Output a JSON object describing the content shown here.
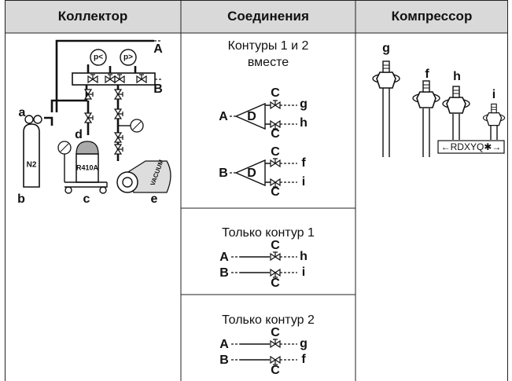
{
  "header": [
    "Коллектор",
    "Соединения",
    "Компрессор"
  ],
  "manifold": {
    "gauge_low": "p<",
    "gauge_high": "p>",
    "port_a": "A",
    "port_b": "B",
    "hose": "a",
    "nitrogen": "b",
    "cylinder": "N2",
    "cart": "c",
    "bottle": "d",
    "refrigerant": "R410A",
    "pump": "e",
    "pump_text": "VACUUM"
  },
  "connections": [
    {
      "title": "Контуры 1 и 2 вместе",
      "groups": [
        {
          "from": "A",
          "divider": "D",
          "valve_top": "C",
          "to_top": "g",
          "to_bottom": "h",
          "valve_bottom": "C"
        },
        {
          "from": "B",
          "divider": "D",
          "valve_top": "C",
          "to_top": "f",
          "to_bottom": "i",
          "valve_bottom": "C"
        }
      ]
    },
    {
      "title": "Только контур 1",
      "lines": [
        {
          "from": "A",
          "valve": "C",
          "to": "h"
        },
        {
          "from": "B",
          "valve": "C",
          "to": "i"
        }
      ]
    },
    {
      "title": "Только контур 2",
      "lines": [
        {
          "from": "A",
          "valve": "C",
          "to": "g"
        },
        {
          "from": "B",
          "valve": "C",
          "to": "f"
        }
      ]
    }
  ],
  "compressor": {
    "ports": [
      "g",
      "f",
      "h",
      "i"
    ],
    "model": "←RDXYQ✱→"
  }
}
